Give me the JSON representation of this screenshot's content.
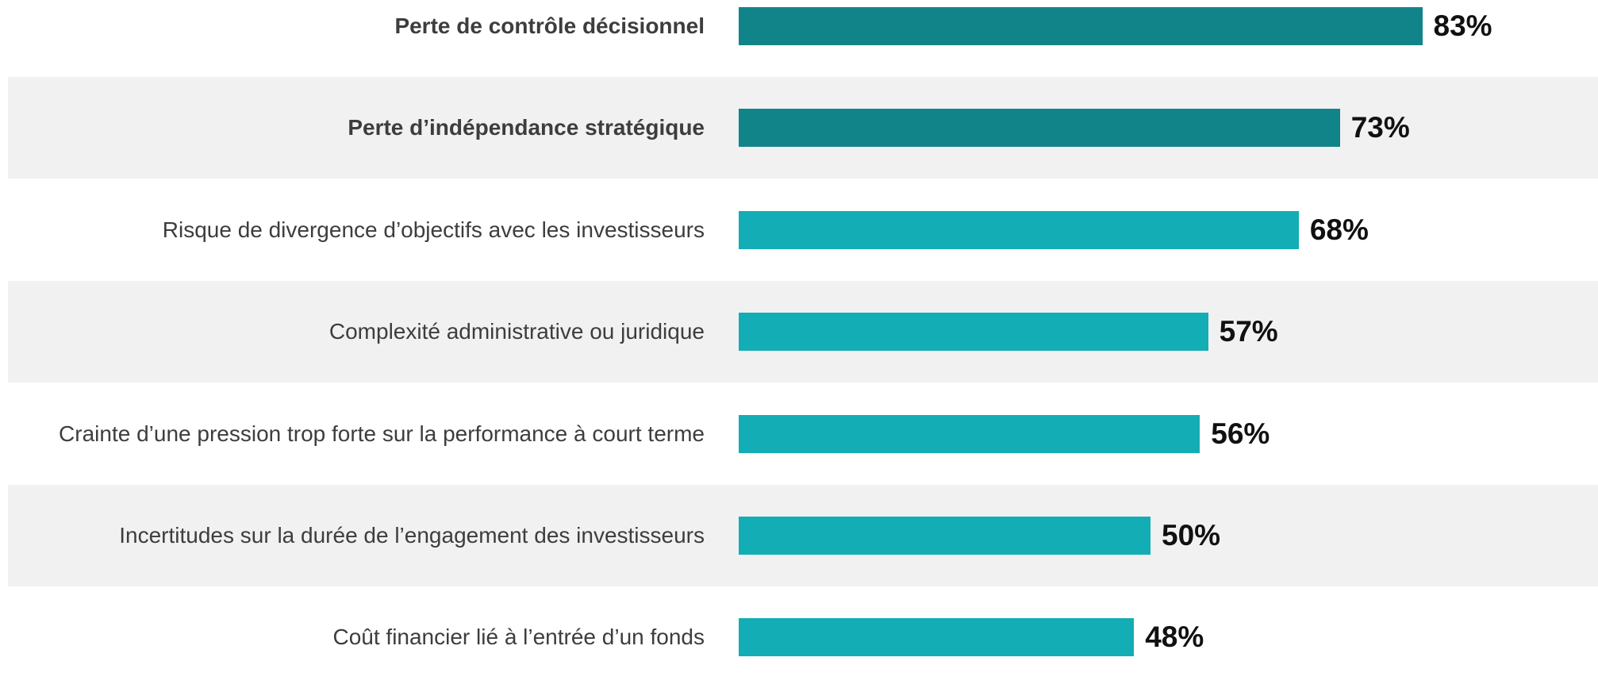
{
  "chart_data": {
    "type": "bar",
    "orientation": "horizontal",
    "categories": [
      "Perte de contrôle décisionnel",
      "Perte d’indépendance stratégique",
      "Risque de divergence d’objectifs avec les investisseurs",
      "Complexité administrative ou juridique",
      "Crainte d’une pression trop forte sur la performance à court terme",
      "Incertitudes sur la durée de l’engagement des investisseurs",
      "Coût financier lié à l’entrée d’un fonds"
    ],
    "values": [
      83,
      73,
      68,
      57,
      56,
      50,
      48
    ],
    "value_labels": [
      "83%",
      "73%",
      "68%",
      "57%",
      "56%",
      "50%",
      "48%"
    ],
    "colors": [
      "#11848a",
      "#11848a",
      "#13adb5",
      "#13adb5",
      "#13adb5",
      "#13adb5",
      "#13adb5"
    ],
    "bold": [
      true,
      true,
      false,
      false,
      false,
      false,
      false
    ]
  }
}
